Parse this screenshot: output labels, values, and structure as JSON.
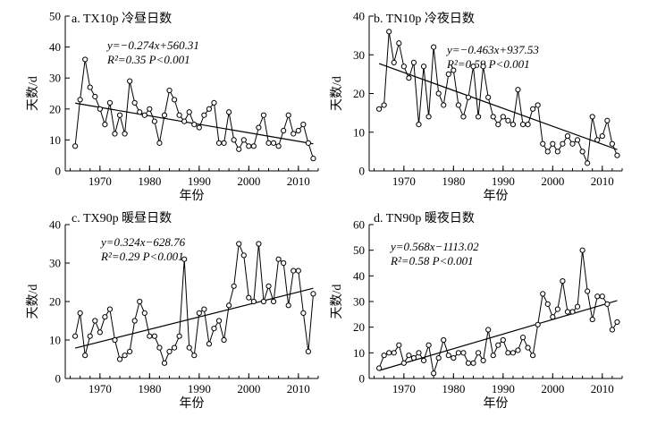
{
  "chart_data": [
    {
      "type": "line",
      "title": "a. TX10p 冷昼日数",
      "ylabel": "天数/d",
      "xlabel": "年份",
      "equation": "y=−0.274x+560.31",
      "stats": "R²=0.35 P<0.001",
      "xlim": [
        1963,
        2014
      ],
      "ylim": [
        0,
        50
      ],
      "xticks": [
        1970,
        1980,
        1990,
        2000,
        2010
      ],
      "yticks": [
        0,
        10,
        20,
        30,
        40,
        50
      ],
      "trend": {
        "slope": -0.274,
        "intercept": 560.31
      },
      "series": [
        {
          "x": [
            1965,
            1966,
            1967,
            1968,
            1969,
            1970,
            1971,
            1972,
            1973,
            1974,
            1975,
            1976,
            1977,
            1978,
            1979,
            1980,
            1981,
            1982,
            1983,
            1984,
            1985,
            1986,
            1987,
            1988,
            1989,
            1990,
            1991,
            1992,
            1993,
            1994,
            1995,
            1996,
            1997,
            1998,
            1999,
            2000,
            2001,
            2002,
            2003,
            2004,
            2005,
            2006,
            2007,
            2008,
            2009,
            2010,
            2011,
            2012,
            2013
          ],
          "values": [
            8,
            23,
            36,
            27,
            24,
            20,
            15,
            22,
            12,
            18,
            12,
            29,
            22,
            19,
            18,
            20,
            16,
            9,
            18,
            26,
            23,
            18,
            16,
            19,
            15,
            14,
            18,
            20,
            22,
            9,
            9,
            19,
            10,
            7,
            10,
            8,
            8,
            14,
            18,
            9,
            9,
            8,
            13,
            18,
            12,
            13,
            15,
            9,
            4
          ]
        }
      ]
    },
    {
      "type": "line",
      "title": "b. TN10p 冷夜日数",
      "ylabel": "天数/d",
      "xlabel": "年份",
      "equation": "y=−0.463x+937.53",
      "stats": "R²=0.59 P<0.001",
      "xlim": [
        1963,
        2014
      ],
      "ylim": [
        0,
        40
      ],
      "xticks": [
        1970,
        1980,
        1990,
        2000,
        2010
      ],
      "yticks": [
        0,
        10,
        20,
        30,
        40
      ],
      "trend": {
        "slope": -0.463,
        "intercept": 937.53
      },
      "series": [
        {
          "x": [
            1965,
            1966,
            1967,
            1968,
            1969,
            1970,
            1971,
            1972,
            1973,
            1974,
            1975,
            1976,
            1977,
            1978,
            1979,
            1980,
            1981,
            1982,
            1983,
            1984,
            1985,
            1986,
            1987,
            1988,
            1989,
            1990,
            1991,
            1992,
            1993,
            1994,
            1995,
            1996,
            1997,
            1998,
            1999,
            2000,
            2001,
            2002,
            2003,
            2004,
            2005,
            2006,
            2007,
            2008,
            2009,
            2010,
            2011,
            2012,
            2013
          ],
          "values": [
            16,
            17,
            36,
            28,
            33,
            27,
            24,
            28,
            12,
            27,
            14,
            32,
            20,
            17,
            25,
            26,
            17,
            14,
            19,
            27,
            14,
            27,
            19,
            14,
            12,
            14,
            13,
            12,
            21,
            12,
            12,
            16,
            17,
            7,
            5,
            7,
            5,
            7,
            9,
            7,
            8,
            5,
            2,
            14,
            8,
            9,
            13,
            7,
            4
          ]
        }
      ]
    },
    {
      "type": "line",
      "title": "c. TX90p 暖昼日数",
      "ylabel": "天数/d",
      "xlabel": "年份",
      "equation": "y=0.324x−628.76",
      "stats": "R²=0.29 P<0.001",
      "xlim": [
        1963,
        2014
      ],
      "ylim": [
        0,
        40
      ],
      "xticks": [
        1970,
        1980,
        1990,
        2000,
        2010
      ],
      "yticks": [
        0,
        10,
        20,
        30,
        40
      ],
      "trend": {
        "slope": 0.324,
        "intercept": -628.76
      },
      "series": [
        {
          "x": [
            1965,
            1966,
            1967,
            1968,
            1969,
            1970,
            1971,
            1972,
            1973,
            1974,
            1975,
            1976,
            1977,
            1978,
            1979,
            1980,
            1981,
            1982,
            1983,
            1984,
            1985,
            1986,
            1987,
            1988,
            1989,
            1990,
            1991,
            1992,
            1993,
            1994,
            1995,
            1996,
            1997,
            1998,
            1999,
            2000,
            2001,
            2002,
            2003,
            2004,
            2005,
            2006,
            2007,
            2008,
            2009,
            2010,
            2011,
            2012,
            2013
          ],
          "values": [
            11,
            17,
            6,
            11,
            15,
            12,
            16,
            18,
            10,
            5,
            6,
            7,
            15,
            20,
            17,
            11,
            11,
            8,
            4,
            7,
            8,
            11,
            31,
            8,
            6,
            17,
            18,
            9,
            13,
            15,
            10,
            19,
            24,
            35,
            32,
            21,
            20,
            35,
            20,
            24,
            20,
            31,
            30,
            19,
            28,
            28,
            17,
            7,
            22
          ]
        }
      ]
    },
    {
      "type": "line",
      "title": "d. TN90p 暖夜日数",
      "ylabel": "天数/d",
      "xlabel": "年份",
      "equation": "y=0.568x−1113.02",
      "stats": "R²=0.58 P<0.001",
      "xlim": [
        1963,
        2014
      ],
      "ylim": [
        0,
        60
      ],
      "xticks": [
        1970,
        1980,
        1990,
        2000,
        2010
      ],
      "yticks": [
        0,
        10,
        20,
        30,
        40,
        50,
        60
      ],
      "trend": {
        "slope": 0.568,
        "intercept": -1113.02
      },
      "series": [
        {
          "x": [
            1965,
            1966,
            1967,
            1968,
            1969,
            1970,
            1971,
            1972,
            1973,
            1974,
            1975,
            1976,
            1977,
            1978,
            1979,
            1980,
            1981,
            1982,
            1983,
            1984,
            1985,
            1986,
            1987,
            1988,
            1989,
            1990,
            1991,
            1992,
            1993,
            1994,
            1995,
            1996,
            1997,
            1998,
            1999,
            2000,
            2001,
            2002,
            2003,
            2004,
            2005,
            2006,
            2007,
            2008,
            2009,
            2010,
            2011,
            2012,
            2013
          ],
          "values": [
            4,
            9,
            10,
            10,
            13,
            6,
            9,
            8,
            10,
            7,
            13,
            2,
            8,
            15,
            9,
            8,
            10,
            10,
            6,
            6,
            10,
            7,
            19,
            9,
            13,
            15,
            10,
            10,
            11,
            16,
            12,
            9,
            21,
            33,
            29,
            24,
            27,
            38,
            26,
            26,
            28,
            50,
            34,
            23,
            32,
            32,
            29,
            19,
            22
          ]
        }
      ]
    }
  ]
}
